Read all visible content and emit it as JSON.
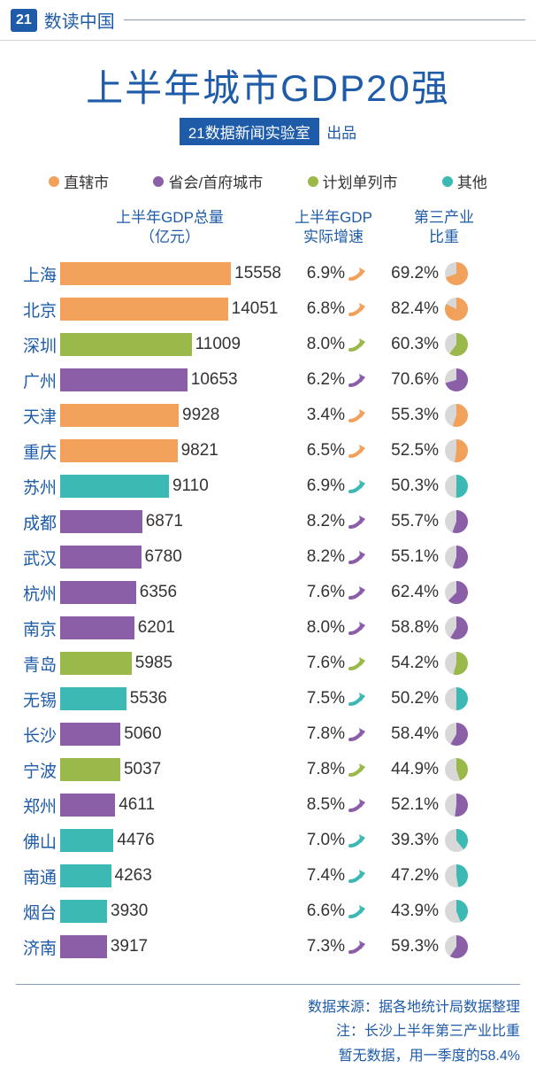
{
  "header": {
    "logo": "21",
    "title": "数读中国"
  },
  "main_title": "上半年城市GDP20强",
  "subtitle_box": "21数据新闻实验室",
  "subtitle_suffix": "出品",
  "legend": [
    {
      "label": "直辖市",
      "color": "#f1a15a"
    },
    {
      "label": "省会/首府城市",
      "color": "#8b5fa8"
    },
    {
      "label": "计划单列市",
      "color": "#9bb84a"
    },
    {
      "label": "其他",
      "color": "#3bb9b2"
    }
  ],
  "columns": {
    "gdp": "上半年GDP总量\n（亿元）",
    "growth": "上半年GDP\n实际增速",
    "tertiary": "第三产业\n比重"
  },
  "max_gdp": 15558,
  "bar_max_width": 210,
  "colors": {
    "直辖市": "#f1a15a",
    "省会/首府城市": "#8b5fa8",
    "计划单列市": "#9bb84a",
    "其他": "#3bb9b2",
    "pie_bg": "#d8d8d8"
  },
  "cities": [
    {
      "name": "上海",
      "gdp": 15558,
      "growth": "6.9%",
      "tertiary": "69.2%",
      "t_pct": 69.2,
      "cat": "直辖市"
    },
    {
      "name": "北京",
      "gdp": 14051,
      "growth": "6.8%",
      "tertiary": "82.4%",
      "t_pct": 82.4,
      "cat": "直辖市"
    },
    {
      "name": "深圳",
      "gdp": 11009,
      "growth": "8.0%",
      "tertiary": "60.3%",
      "t_pct": 60.3,
      "cat": "计划单列市"
    },
    {
      "name": "广州",
      "gdp": 10653,
      "growth": "6.2%",
      "tertiary": "70.6%",
      "t_pct": 70.6,
      "cat": "省会/首府城市"
    },
    {
      "name": "天津",
      "gdp": 9928,
      "growth": "3.4%",
      "tertiary": "55.3%",
      "t_pct": 55.3,
      "cat": "直辖市"
    },
    {
      "name": "重庆",
      "gdp": 9821,
      "growth": "6.5%",
      "tertiary": "52.5%",
      "t_pct": 52.5,
      "cat": "直辖市"
    },
    {
      "name": "苏州",
      "gdp": 9110,
      "growth": "6.9%",
      "tertiary": "50.3%",
      "t_pct": 50.3,
      "cat": "其他"
    },
    {
      "name": "成都",
      "gdp": 6871,
      "growth": "8.2%",
      "tertiary": "55.7%",
      "t_pct": 55.7,
      "cat": "省会/首府城市"
    },
    {
      "name": "武汉",
      "gdp": 6780,
      "growth": "8.2%",
      "tertiary": "55.1%",
      "t_pct": 55.1,
      "cat": "省会/首府城市"
    },
    {
      "name": "杭州",
      "gdp": 6356,
      "growth": "7.6%",
      "tertiary": "62.4%",
      "t_pct": 62.4,
      "cat": "省会/首府城市"
    },
    {
      "name": "南京",
      "gdp": 6201,
      "growth": "8.0%",
      "tertiary": "58.8%",
      "t_pct": 58.8,
      "cat": "省会/首府城市"
    },
    {
      "name": "青岛",
      "gdp": 5985,
      "growth": "7.6%",
      "tertiary": "54.2%",
      "t_pct": 54.2,
      "cat": "计划单列市"
    },
    {
      "name": "无锡",
      "gdp": 5536,
      "growth": "7.5%",
      "tertiary": "50.2%",
      "t_pct": 50.2,
      "cat": "其他"
    },
    {
      "name": "长沙",
      "gdp": 5060,
      "growth": "7.8%",
      "tertiary": "58.4%",
      "t_pct": 58.4,
      "cat": "省会/首府城市"
    },
    {
      "name": "宁波",
      "gdp": 5037,
      "growth": "7.8%",
      "tertiary": "44.9%",
      "t_pct": 44.9,
      "cat": "计划单列市"
    },
    {
      "name": "郑州",
      "gdp": 4611,
      "growth": "8.5%",
      "tertiary": "52.1%",
      "t_pct": 52.1,
      "cat": "省会/首府城市"
    },
    {
      "name": "佛山",
      "gdp": 4476,
      "growth": "7.0%",
      "tertiary": "39.3%",
      "t_pct": 39.3,
      "cat": "其他"
    },
    {
      "name": "南通",
      "gdp": 4263,
      "growth": "7.4%",
      "tertiary": "47.2%",
      "t_pct": 47.2,
      "cat": "其他"
    },
    {
      "name": "烟台",
      "gdp": 3930,
      "growth": "6.6%",
      "tertiary": "43.9%",
      "t_pct": 43.9,
      "cat": "其他"
    },
    {
      "name": "济南",
      "gdp": 3917,
      "growth": "7.3%",
      "tertiary": "59.3%",
      "t_pct": 59.3,
      "cat": "省会/首府城市"
    }
  ],
  "footer": {
    "source": "数据来源：据各地统计局数据整理",
    "note1": "注：长沙上半年第三产业比重",
    "note2": "暂无数据，用一季度的58.4%"
  }
}
